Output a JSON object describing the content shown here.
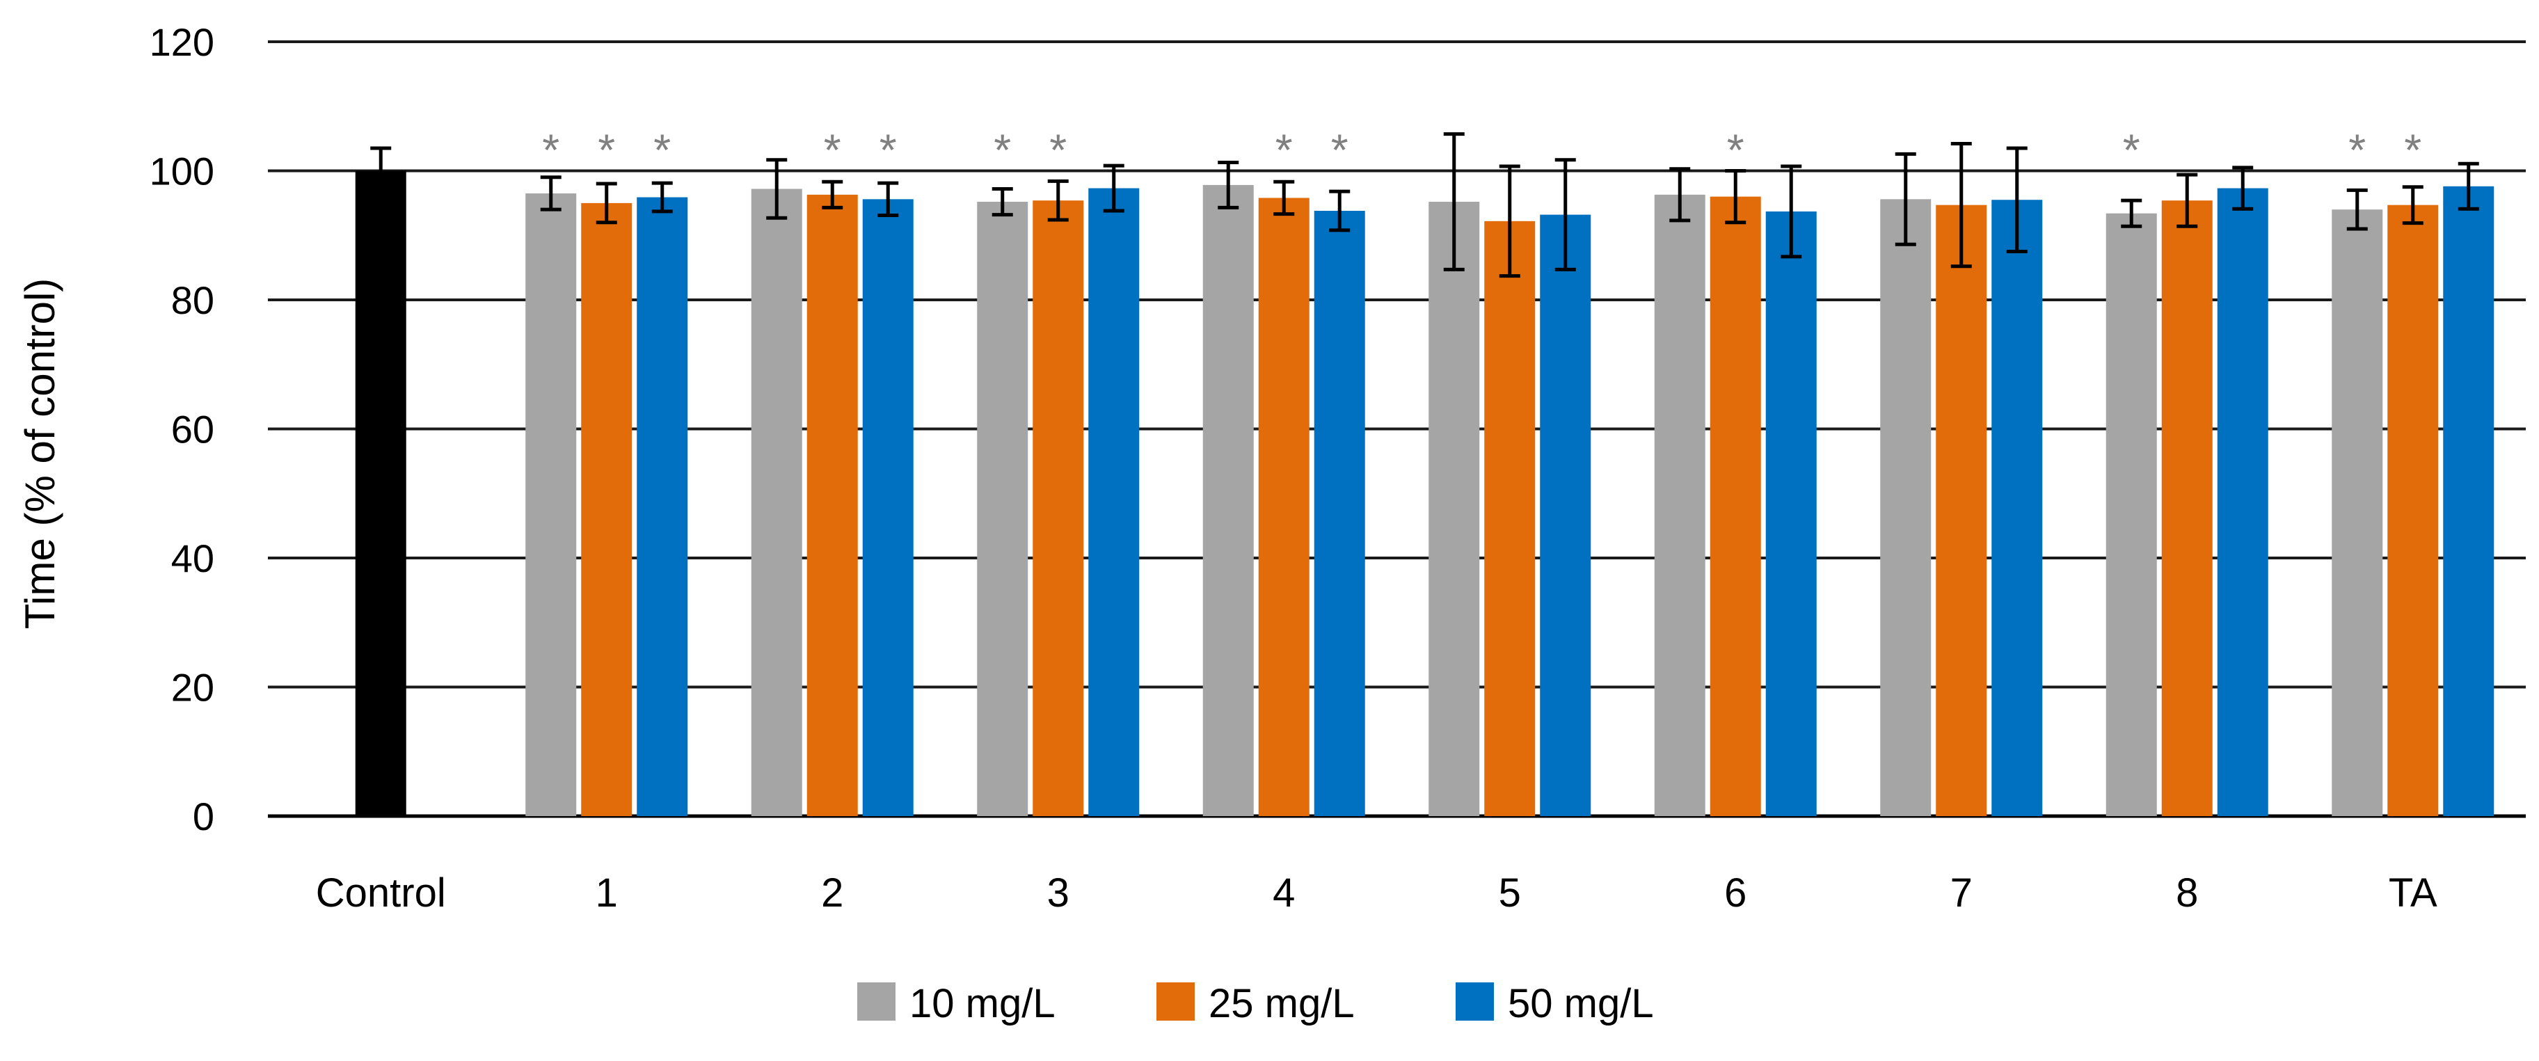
{
  "chart_data": {
    "type": "bar",
    "title": "",
    "xlabel": "",
    "ylabel": "Time (% of control)",
    "ylim": [
      0,
      120
    ],
    "yticks": [
      0,
      20,
      40,
      60,
      80,
      100,
      120
    ],
    "grid": true,
    "legend_position": "bottom-center",
    "control": {
      "label": "Control",
      "value": 100,
      "error": 3.5,
      "color": "#000000"
    },
    "categories": [
      "1",
      "2",
      "3",
      "4",
      "5",
      "6",
      "7",
      "8",
      "TA"
    ],
    "series": [
      {
        "name": "10 mg/L",
        "color": "#A5A5A5",
        "values": [
          96.5,
          97.2,
          95.2,
          97.8,
          95.2,
          96.3,
          95.6,
          93.4,
          94.0
        ],
        "errors": [
          2.5,
          4.5,
          2.0,
          3.5,
          10.5,
          4.0,
          7.0,
          2.0,
          3.0
        ],
        "significant": [
          true,
          false,
          true,
          false,
          false,
          false,
          false,
          true,
          true
        ]
      },
      {
        "name": "25 mg/L",
        "color": "#E36C0A",
        "values": [
          95.0,
          96.3,
          95.4,
          95.8,
          92.2,
          96.0,
          94.7,
          95.4,
          94.7
        ],
        "errors": [
          3.0,
          2.0,
          3.0,
          2.5,
          8.5,
          4.0,
          9.5,
          4.0,
          2.8
        ],
        "significant": [
          true,
          true,
          true,
          true,
          false,
          true,
          false,
          false,
          true
        ]
      },
      {
        "name": "50 mg/L",
        "color": "#0070C0",
        "values": [
          95.9,
          95.6,
          97.3,
          93.8,
          93.2,
          93.7,
          95.5,
          97.3,
          97.6
        ],
        "errors": [
          2.2,
          2.5,
          3.5,
          3.0,
          8.5,
          7.0,
          8.0,
          3.2,
          3.5
        ],
        "significant": [
          true,
          true,
          false,
          true,
          false,
          false,
          false,
          false,
          false
        ]
      }
    ],
    "significance_marker": "*"
  }
}
